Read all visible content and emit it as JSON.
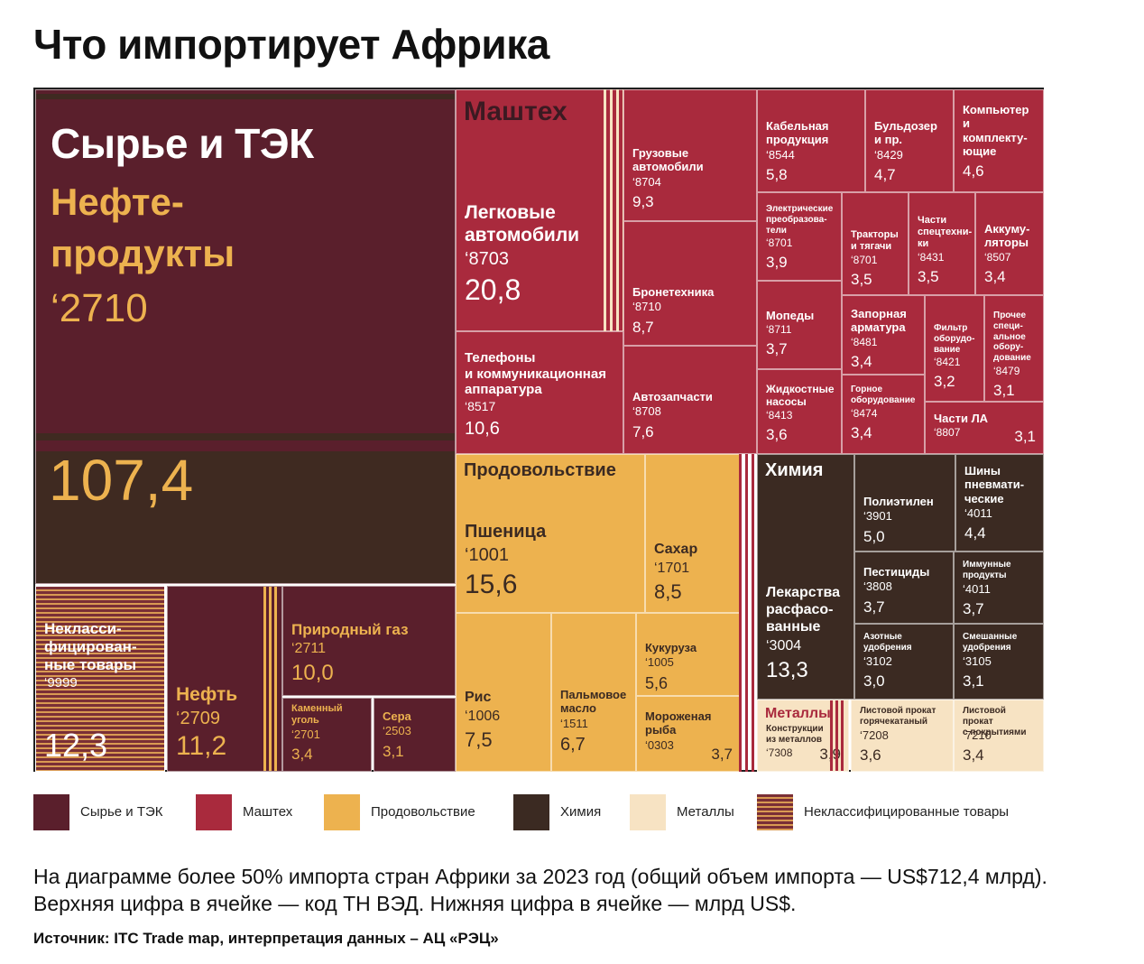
{
  "title": "Что импортирует Африка",
  "colors": {
    "raw": "#5a1f2c",
    "raw_dark": "#3f2a21",
    "mash": "#a92a3d",
    "food": "#edb24f",
    "chem": "#3b2a22",
    "metal": "#f7e3c3",
    "unclass_a": "#7a2f36",
    "unclass_b": "#d99a52"
  },
  "legend": [
    {
      "label": "Сырье и ТЭК",
      "color": "#5a1f2c",
      "pattern": "solid"
    },
    {
      "label": "Маштех",
      "color": "#a92a3d",
      "pattern": "solid"
    },
    {
      "label": "Продовольствие",
      "color": "#edb24f",
      "pattern": "solid"
    },
    {
      "label": "Химия",
      "color": "#3b2a22",
      "pattern": "solid"
    },
    {
      "label": "Металлы",
      "color": "#f7e3c3",
      "pattern": "solid"
    },
    {
      "label": "Неклассифицированные товары",
      "color": "#7a2f36",
      "pattern": "stripes"
    }
  ],
  "note": "На диаграмме более 50% импорта стран Африки за 2023 год (общий объем импорта — US$712,4 млрд). Верхняя цифра в ячейке — код ТН ВЭД. Нижняя цифра в ячейке — млрд US$.",
  "source": "Источник: ITC Trade map, интерпретация данных – АЦ «РЭЦ»",
  "chart_data": {
    "type": "treemap",
    "title": "Что импортирует Африка",
    "unit": "млрд US$",
    "groups": [
      {
        "name": "Сырье и ТЭК",
        "items": [
          {
            "label": "Нефте-\nпродукты",
            "code": "‘2710",
            "value": 107.4
          },
          {
            "label": "Нефть",
            "code": "‘2709",
            "value": 11.2
          },
          {
            "label": "Природный газ",
            "code": "‘2711",
            "value": 10.0
          },
          {
            "label": "Каменный\nуголь",
            "code": "‘2701",
            "value": 3.4
          },
          {
            "label": "Сера",
            "code": "‘2503",
            "value": 3.1
          }
        ]
      },
      {
        "name": "Неклассифицированные товары",
        "items": [
          {
            "label": "Некласси-\nфицирован-\nные товары",
            "code": "‘9999",
            "value": 12.3
          }
        ]
      },
      {
        "name": "Маштех",
        "items": [
          {
            "label": "Легковые\nавтомобили",
            "code": "‘8703",
            "value": 20.8
          },
          {
            "label": "Грузовые\nавтомобили",
            "code": "‘8704",
            "value": 9.3
          },
          {
            "label": "Бронетехника",
            "code": "‘8710",
            "value": 8.7
          },
          {
            "label": "Телефоны\nи коммуникационная\nаппаратура",
            "code": "‘8517",
            "value": 10.6
          },
          {
            "label": "Автозапчасти",
            "code": "‘8708",
            "value": 7.6
          },
          {
            "label": "Кабельная\nпродукция",
            "code": "‘8544",
            "value": 5.8
          },
          {
            "label": "Бульдозер\nи пр.",
            "code": "‘8429",
            "value": 4.7
          },
          {
            "label": "Компьютер\nи\nкомплекту-\nющие",
            "code": "",
            "value": 4.6
          },
          {
            "label": "Электрические\nпреобразова-\nтели",
            "code": "‘8701",
            "value": 3.9
          },
          {
            "label": "Тракторы\nи тягачи",
            "code": "‘8701",
            "value": 3.5
          },
          {
            "label": "Части\nспецтехни-\nки",
            "code": "‘8431",
            "value": 3.5
          },
          {
            "label": "Аккуму-\nляторы",
            "code": "‘8507",
            "value": 3.4
          },
          {
            "label": "Мопеды",
            "code": "‘8711",
            "value": 3.7
          },
          {
            "label": "Запорная\nарматура",
            "code": "‘8481",
            "value": 3.4
          },
          {
            "label": "Фильтр\nоборудо-\nвание",
            "code": "‘8421",
            "value": 3.2
          },
          {
            "label": "Прочее\nспеци-\nальное\nобору-\nдование",
            "code": "‘8479",
            "value": 3.1
          },
          {
            "label": "Жидкостные\nнасосы",
            "code": "‘8413",
            "value": 3.6
          },
          {
            "label": "Горное\nоборудование",
            "code": "‘8474",
            "value": 3.4
          },
          {
            "label": "Части ЛА",
            "code": "‘8807",
            "value": 3.1
          }
        ]
      },
      {
        "name": "Продовольствие",
        "items": [
          {
            "label": "Пшеница",
            "code": "‘1001",
            "value": 15.6
          },
          {
            "label": "Сахар",
            "code": "‘1701",
            "value": 8.5
          },
          {
            "label": "Рис",
            "code": "‘1006",
            "value": 7.5
          },
          {
            "label": "Пальмовое\nмасло",
            "code": "‘1511",
            "value": 6.7
          },
          {
            "label": "Кукуруза",
            "code": "‘1005",
            "value": 5.6
          },
          {
            "label": "Мороженая\nрыба",
            "code": "‘0303",
            "value": 3.7
          }
        ]
      },
      {
        "name": "Химия",
        "items": [
          {
            "label": "Лекарства\nрасфасо-\nванные",
            "code": "‘3004",
            "value": 13.3
          },
          {
            "label": "Полиэтилен",
            "code": "‘3901",
            "value": 5.0
          },
          {
            "label": "Шины\nпневмати-\nческие",
            "code": "‘4011",
            "value": 4.4
          },
          {
            "label": "Пестициды",
            "code": "‘3808",
            "value": 3.7
          },
          {
            "label": "Иммунные\nпродукты",
            "code": "‘4011",
            "value": 3.7
          },
          {
            "label": "Азотные\nудобрения",
            "code": "‘3102",
            "value": 3.0
          },
          {
            "label": "Смешанные\nудобрения",
            "code": "‘3105",
            "value": 3.1
          }
        ]
      },
      {
        "name": "Металлы",
        "items": [
          {
            "label": "Конструкции\nиз металлов",
            "code": "‘7308",
            "value": 3.9
          },
          {
            "label": "Листовой прокат\nгорячекатаный",
            "code": "‘7208",
            "value": 3.6
          },
          {
            "label": "Листовой прокат\nс покрытиями",
            "code": "‘7210",
            "value": 3.4
          }
        ]
      }
    ]
  }
}
